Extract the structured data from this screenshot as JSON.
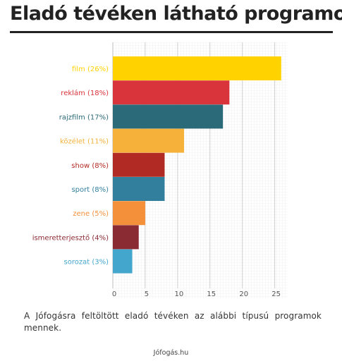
{
  "title": "Eladó tévéken látható programok",
  "caption": "A Jófogásra feltöltött eladó tévéken az alábbi típusú programok mennek.",
  "source": "Jófogás.hu",
  "chart_data": {
    "type": "bar",
    "orientation": "horizontal",
    "categories": [
      "film (26%)",
      "reklám (18%)",
      "rajzfilm (17%)",
      "közélet (11%)",
      "show (8%)",
      "sport (8%)",
      "zene (5%)",
      "ismeretterjesztő (4%)",
      "sorozat (3%)"
    ],
    "values": [
      26,
      18,
      17,
      11,
      8,
      8,
      5,
      4,
      3
    ],
    "colors": [
      "#ffd200",
      "#d9333b",
      "#2b6a78",
      "#f5b13a",
      "#b22a24",
      "#327f9d",
      "#f4903a",
      "#8a2a32",
      "#43a6cc"
    ],
    "x_ticks": [
      "0",
      "5",
      "10",
      "15",
      "20",
      "25"
    ],
    "xlim": [
      0,
      27
    ],
    "grid": true,
    "title": "",
    "xlabel": "",
    "ylabel": ""
  }
}
